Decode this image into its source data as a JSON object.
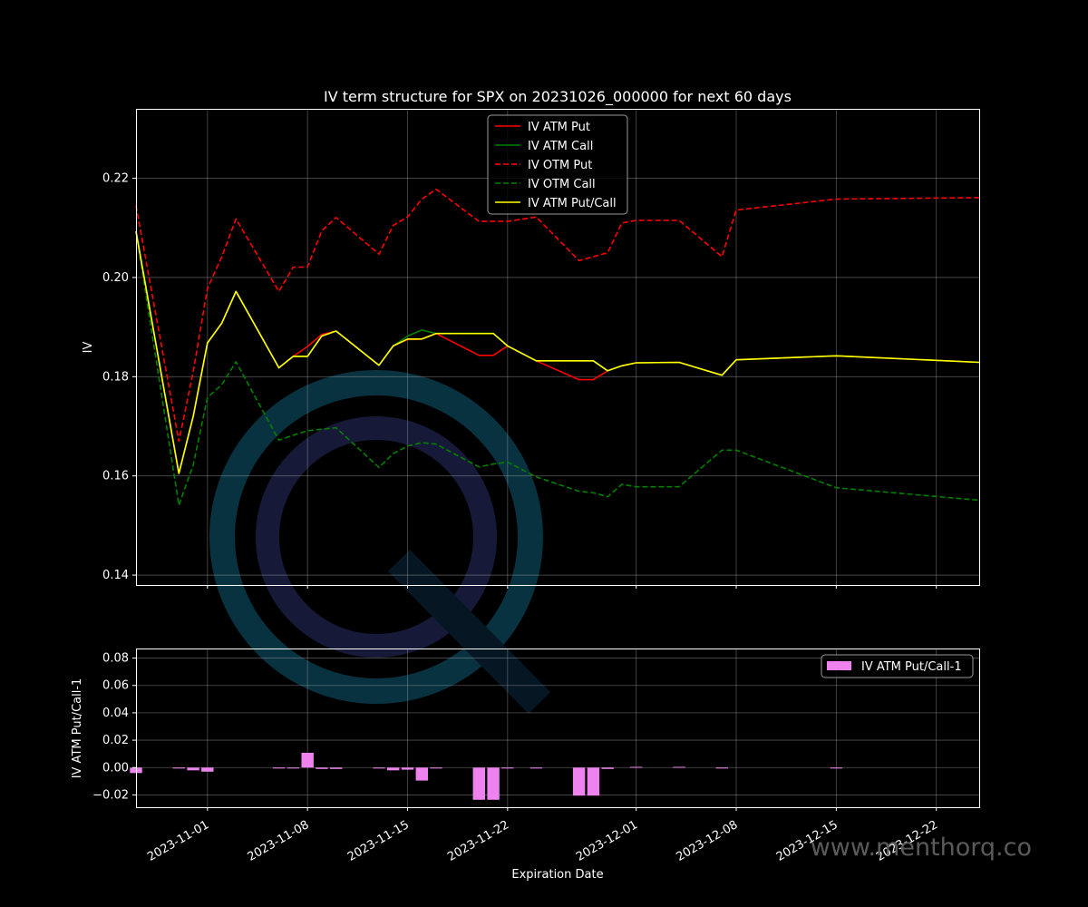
{
  "colors": {
    "background": "#000000",
    "text": "#ffffff",
    "grid": "#b0b0b0",
    "iv_atm_put": "#ff0000",
    "iv_atm_call": "#008000",
    "iv_otm_put": "#ff0000",
    "iv_otm_call": "#008000",
    "iv_atm_put_call": "#ffff00",
    "ratio_bar": "#ee82ee",
    "watermark_ring": "#0b3b4c",
    "watermark_ring2": "#1c1c40"
  },
  "watermark": {
    "text": "www.menthorq.co",
    "icon": "menthorq-q-logo-icon"
  },
  "chart_data": [
    {
      "type": "line",
      "title": "IV term structure for SPX on 20231026_000000 for next 60 days",
      "xlabel": "",
      "ylabel": "IV",
      "x_type": "date",
      "xlim": [
        "2023-10-27",
        "2023-12-25"
      ],
      "ylim": [
        0.138,
        0.234
      ],
      "yticks": [
        0.14,
        0.16,
        0.18,
        0.2,
        0.22
      ],
      "ytick_labels": [
        "0.14",
        "0.16",
        "0.18",
        "0.20",
        "0.22"
      ],
      "xticks": [
        "2023-11-01",
        "2023-11-08",
        "2023-11-15",
        "2023-11-22",
        "2023-12-01",
        "2023-12-08",
        "2023-12-15",
        "2023-12-22"
      ],
      "grid": true,
      "legend_position": "top-center",
      "series": [
        {
          "name": "IV ATM Put",
          "style": "solid",
          "color": "#ff0000",
          "points": [
            [
              "2023-10-27",
              0.2093
            ],
            [
              "2023-10-30",
              0.1605
            ],
            [
              "2023-10-31",
              0.172
            ],
            [
              "2023-11-01",
              0.1868
            ],
            [
              "2023-11-02",
              0.1908
            ],
            [
              "2023-11-03",
              0.1972
            ],
            [
              "2023-11-06",
              0.1818
            ],
            [
              "2023-11-07",
              0.1841
            ],
            [
              "2023-11-08",
              0.1861
            ],
            [
              "2023-11-09",
              0.1885
            ],
            [
              "2023-11-10",
              0.1892
            ],
            [
              "2023-11-13",
              0.1823
            ],
            [
              "2023-11-14",
              0.1862
            ],
            [
              "2023-11-15",
              0.1875
            ],
            [
              "2023-11-16",
              0.1876
            ],
            [
              "2023-11-17",
              0.1887
            ],
            [
              "2023-11-20",
              0.1843
            ],
            [
              "2023-11-21",
              0.1843
            ],
            [
              "2023-11-22",
              0.1862
            ],
            [
              "2023-11-24",
              0.1832
            ],
            [
              "2023-11-27",
              0.1794
            ],
            [
              "2023-11-28",
              0.1794
            ],
            [
              "2023-11-29",
              0.1812
            ],
            [
              "2023-11-30",
              0.1822
            ],
            [
              "2023-12-01",
              0.1828
            ],
            [
              "2023-12-04",
              0.1829
            ],
            [
              "2023-12-07",
              0.1803
            ],
            [
              "2023-12-08",
              0.1834
            ],
            [
              "2023-12-15",
              0.1842
            ],
            [
              "2023-12-25",
              0.1829
            ]
          ]
        },
        {
          "name": "IV ATM Call",
          "style": "solid",
          "color": "#008000",
          "points": [
            [
              "2023-10-27",
              0.2093
            ],
            [
              "2023-10-30",
              0.1605
            ],
            [
              "2023-10-31",
              0.172
            ],
            [
              "2023-11-01",
              0.1868
            ],
            [
              "2023-11-02",
              0.1908
            ],
            [
              "2023-11-03",
              0.1972
            ],
            [
              "2023-11-06",
              0.1818
            ],
            [
              "2023-11-07",
              0.1841
            ],
            [
              "2023-11-08",
              0.1841
            ],
            [
              "2023-11-09",
              0.1882
            ],
            [
              "2023-11-10",
              0.1892
            ],
            [
              "2023-11-13",
              0.1823
            ],
            [
              "2023-11-14",
              0.1862
            ],
            [
              "2023-11-15",
              0.1882
            ],
            [
              "2023-11-16",
              0.1894
            ],
            [
              "2023-11-17",
              0.1887
            ],
            [
              "2023-11-20",
              0.1887
            ],
            [
              "2023-11-21",
              0.1887
            ],
            [
              "2023-11-22",
              0.1862
            ],
            [
              "2023-11-24",
              0.1832
            ],
            [
              "2023-11-27",
              0.1832
            ],
            [
              "2023-11-28",
              0.1832
            ],
            [
              "2023-11-29",
              0.1812
            ],
            [
              "2023-11-30",
              0.1822
            ],
            [
              "2023-12-01",
              0.1828
            ],
            [
              "2023-12-04",
              0.1829
            ],
            [
              "2023-12-07",
              0.1803
            ],
            [
              "2023-12-08",
              0.1834
            ],
            [
              "2023-12-15",
              0.1842
            ],
            [
              "2023-12-25",
              0.1829
            ]
          ]
        },
        {
          "name": "IV OTM Put",
          "style": "dashed",
          "color": "#ff0000",
          "points": [
            [
              "2023-10-27",
              0.2145
            ],
            [
              "2023-10-30",
              0.167
            ],
            [
              "2023-10-31",
              0.181
            ],
            [
              "2023-11-01",
              0.1978
            ],
            [
              "2023-11-02",
              0.2042
            ],
            [
              "2023-11-03",
              0.2118
            ],
            [
              "2023-11-06",
              0.1972
            ],
            [
              "2023-11-07",
              0.2021
            ],
            [
              "2023-11-08",
              0.2021
            ],
            [
              "2023-11-09",
              0.2094
            ],
            [
              "2023-11-10",
              0.2121
            ],
            [
              "2023-11-13",
              0.2047
            ],
            [
              "2023-11-14",
              0.2105
            ],
            [
              "2023-11-15",
              0.2122
            ],
            [
              "2023-11-16",
              0.2158
            ],
            [
              "2023-11-17",
              0.2178
            ],
            [
              "2023-11-20",
              0.2113
            ],
            [
              "2023-11-21",
              0.2113
            ],
            [
              "2023-11-22",
              0.2113
            ],
            [
              "2023-11-24",
              0.2122
            ],
            [
              "2023-11-27",
              0.2034
            ],
            [
              "2023-11-28",
              0.2042
            ],
            [
              "2023-11-29",
              0.205
            ],
            [
              "2023-11-30",
              0.211
            ],
            [
              "2023-12-01",
              0.2115
            ],
            [
              "2023-12-04",
              0.2115
            ],
            [
              "2023-12-07",
              0.2042
            ],
            [
              "2023-12-08",
              0.2136
            ],
            [
              "2023-12-15",
              0.2158
            ],
            [
              "2023-12-25",
              0.2161
            ]
          ]
        },
        {
          "name": "IV OTM Call",
          "style": "dashed",
          "color": "#008000",
          "points": [
            [
              "2023-10-27",
              0.2093
            ],
            [
              "2023-10-30",
              0.1541
            ],
            [
              "2023-10-31",
              0.1622
            ],
            [
              "2023-11-01",
              0.1758
            ],
            [
              "2023-11-02",
              0.1784
            ],
            [
              "2023-11-03",
              0.183
            ],
            [
              "2023-11-06",
              0.1672
            ],
            [
              "2023-11-07",
              0.1682
            ],
            [
              "2023-11-08",
              0.1691
            ],
            [
              "2023-11-09",
              0.1694
            ],
            [
              "2023-11-10",
              0.1697
            ],
            [
              "2023-11-13",
              0.1617
            ],
            [
              "2023-11-14",
              0.1645
            ],
            [
              "2023-11-15",
              0.166
            ],
            [
              "2023-11-16",
              0.1667
            ],
            [
              "2023-11-17",
              0.1664
            ],
            [
              "2023-11-20",
              0.1618
            ],
            [
              "2023-11-21",
              0.1624
            ],
            [
              "2023-11-22",
              0.1628
            ],
            [
              "2023-11-24",
              0.1598
            ],
            [
              "2023-11-27",
              0.1569
            ],
            [
              "2023-11-28",
              0.1566
            ],
            [
              "2023-11-29",
              0.1558
            ],
            [
              "2023-11-30",
              0.1583
            ],
            [
              "2023-12-01",
              0.1578
            ],
            [
              "2023-12-04",
              0.1578
            ],
            [
              "2023-12-07",
              0.1652
            ],
            [
              "2023-12-08",
              0.1652
            ],
            [
              "2023-12-15",
              0.1576
            ],
            [
              "2023-12-25",
              0.1551
            ]
          ]
        },
        {
          "name": "IV ATM Put/Call",
          "style": "solid",
          "color": "#ffff00",
          "points": [
            [
              "2023-10-27",
              0.2093
            ],
            [
              "2023-10-30",
              0.1605
            ],
            [
              "2023-10-31",
              0.172
            ],
            [
              "2023-11-01",
              0.1868
            ],
            [
              "2023-11-02",
              0.1908
            ],
            [
              "2023-11-03",
              0.1972
            ],
            [
              "2023-11-06",
              0.1818
            ],
            [
              "2023-11-07",
              0.1841
            ],
            [
              "2023-11-08",
              0.1841
            ],
            [
              "2023-11-09",
              0.1882
            ],
            [
              "2023-11-10",
              0.1892
            ],
            [
              "2023-11-13",
              0.1823
            ],
            [
              "2023-11-14",
              0.1862
            ],
            [
              "2023-11-15",
              0.1876
            ],
            [
              "2023-11-16",
              0.1876
            ],
            [
              "2023-11-17",
              0.1887
            ],
            [
              "2023-11-20",
              0.1887
            ],
            [
              "2023-11-21",
              0.1887
            ],
            [
              "2023-11-22",
              0.1862
            ],
            [
              "2023-11-24",
              0.1832
            ],
            [
              "2023-11-27",
              0.1832
            ],
            [
              "2023-11-28",
              0.1832
            ],
            [
              "2023-11-29",
              0.1812
            ],
            [
              "2023-11-30",
              0.1822
            ],
            [
              "2023-12-01",
              0.1828
            ],
            [
              "2023-12-04",
              0.1829
            ],
            [
              "2023-12-07",
              0.1803
            ],
            [
              "2023-12-08",
              0.1834
            ],
            [
              "2023-12-15",
              0.1842
            ],
            [
              "2023-12-25",
              0.1829
            ]
          ]
        }
      ]
    },
    {
      "type": "bar",
      "title": "",
      "xlabel": "Expiration Date",
      "ylabel": "IV ATM Put/Call-1",
      "x_type": "date",
      "xlim": [
        "2023-10-27",
        "2023-12-25"
      ],
      "ylim": [
        -0.029,
        0.087
      ],
      "yticks": [
        -0.02,
        0.0,
        0.02,
        0.04,
        0.06,
        0.08
      ],
      "ytick_labels": [
        "−0.02",
        "0.00",
        "0.02",
        "0.04",
        "0.06",
        "0.08"
      ],
      "xticks": [
        "2023-11-01",
        "2023-11-08",
        "2023-11-15",
        "2023-11-22",
        "2023-12-01",
        "2023-12-08",
        "2023-12-15",
        "2023-12-22"
      ],
      "grid": true,
      "legend_position": "top-right",
      "series": [
        {
          "name": "IV ATM Put/Call-1",
          "color": "#ee82ee",
          "points": [
            [
              "2023-10-27",
              -0.004
            ],
            [
              "2023-10-30",
              0.0
            ],
            [
              "2023-10-31",
              -0.002
            ],
            [
              "2023-11-01",
              -0.003
            ],
            [
              "2023-11-06",
              -0.0005
            ],
            [
              "2023-11-07",
              -0.0005
            ],
            [
              "2023-11-08",
              0.0108
            ],
            [
              "2023-11-09",
              -0.001
            ],
            [
              "2023-11-10",
              -0.001
            ],
            [
              "2023-11-13",
              -0.0005
            ],
            [
              "2023-11-14",
              -0.002
            ],
            [
              "2023-11-15",
              -0.0015
            ],
            [
              "2023-11-16",
              -0.0095
            ],
            [
              "2023-11-17",
              -0.0005
            ],
            [
              "2023-11-20",
              -0.0235
            ],
            [
              "2023-11-21",
              -0.0235
            ],
            [
              "2023-11-22",
              -0.0005
            ],
            [
              "2023-11-24",
              -0.0005
            ],
            [
              "2023-11-27",
              -0.0205
            ],
            [
              "2023-11-28",
              -0.0205
            ],
            [
              "2023-11-29",
              -0.001
            ],
            [
              "2023-12-01",
              0.0005
            ],
            [
              "2023-12-04",
              0.0005
            ],
            [
              "2023-12-07",
              -0.0005
            ],
            [
              "2023-12-15",
              -0.0005
            ]
          ]
        }
      ]
    }
  ]
}
